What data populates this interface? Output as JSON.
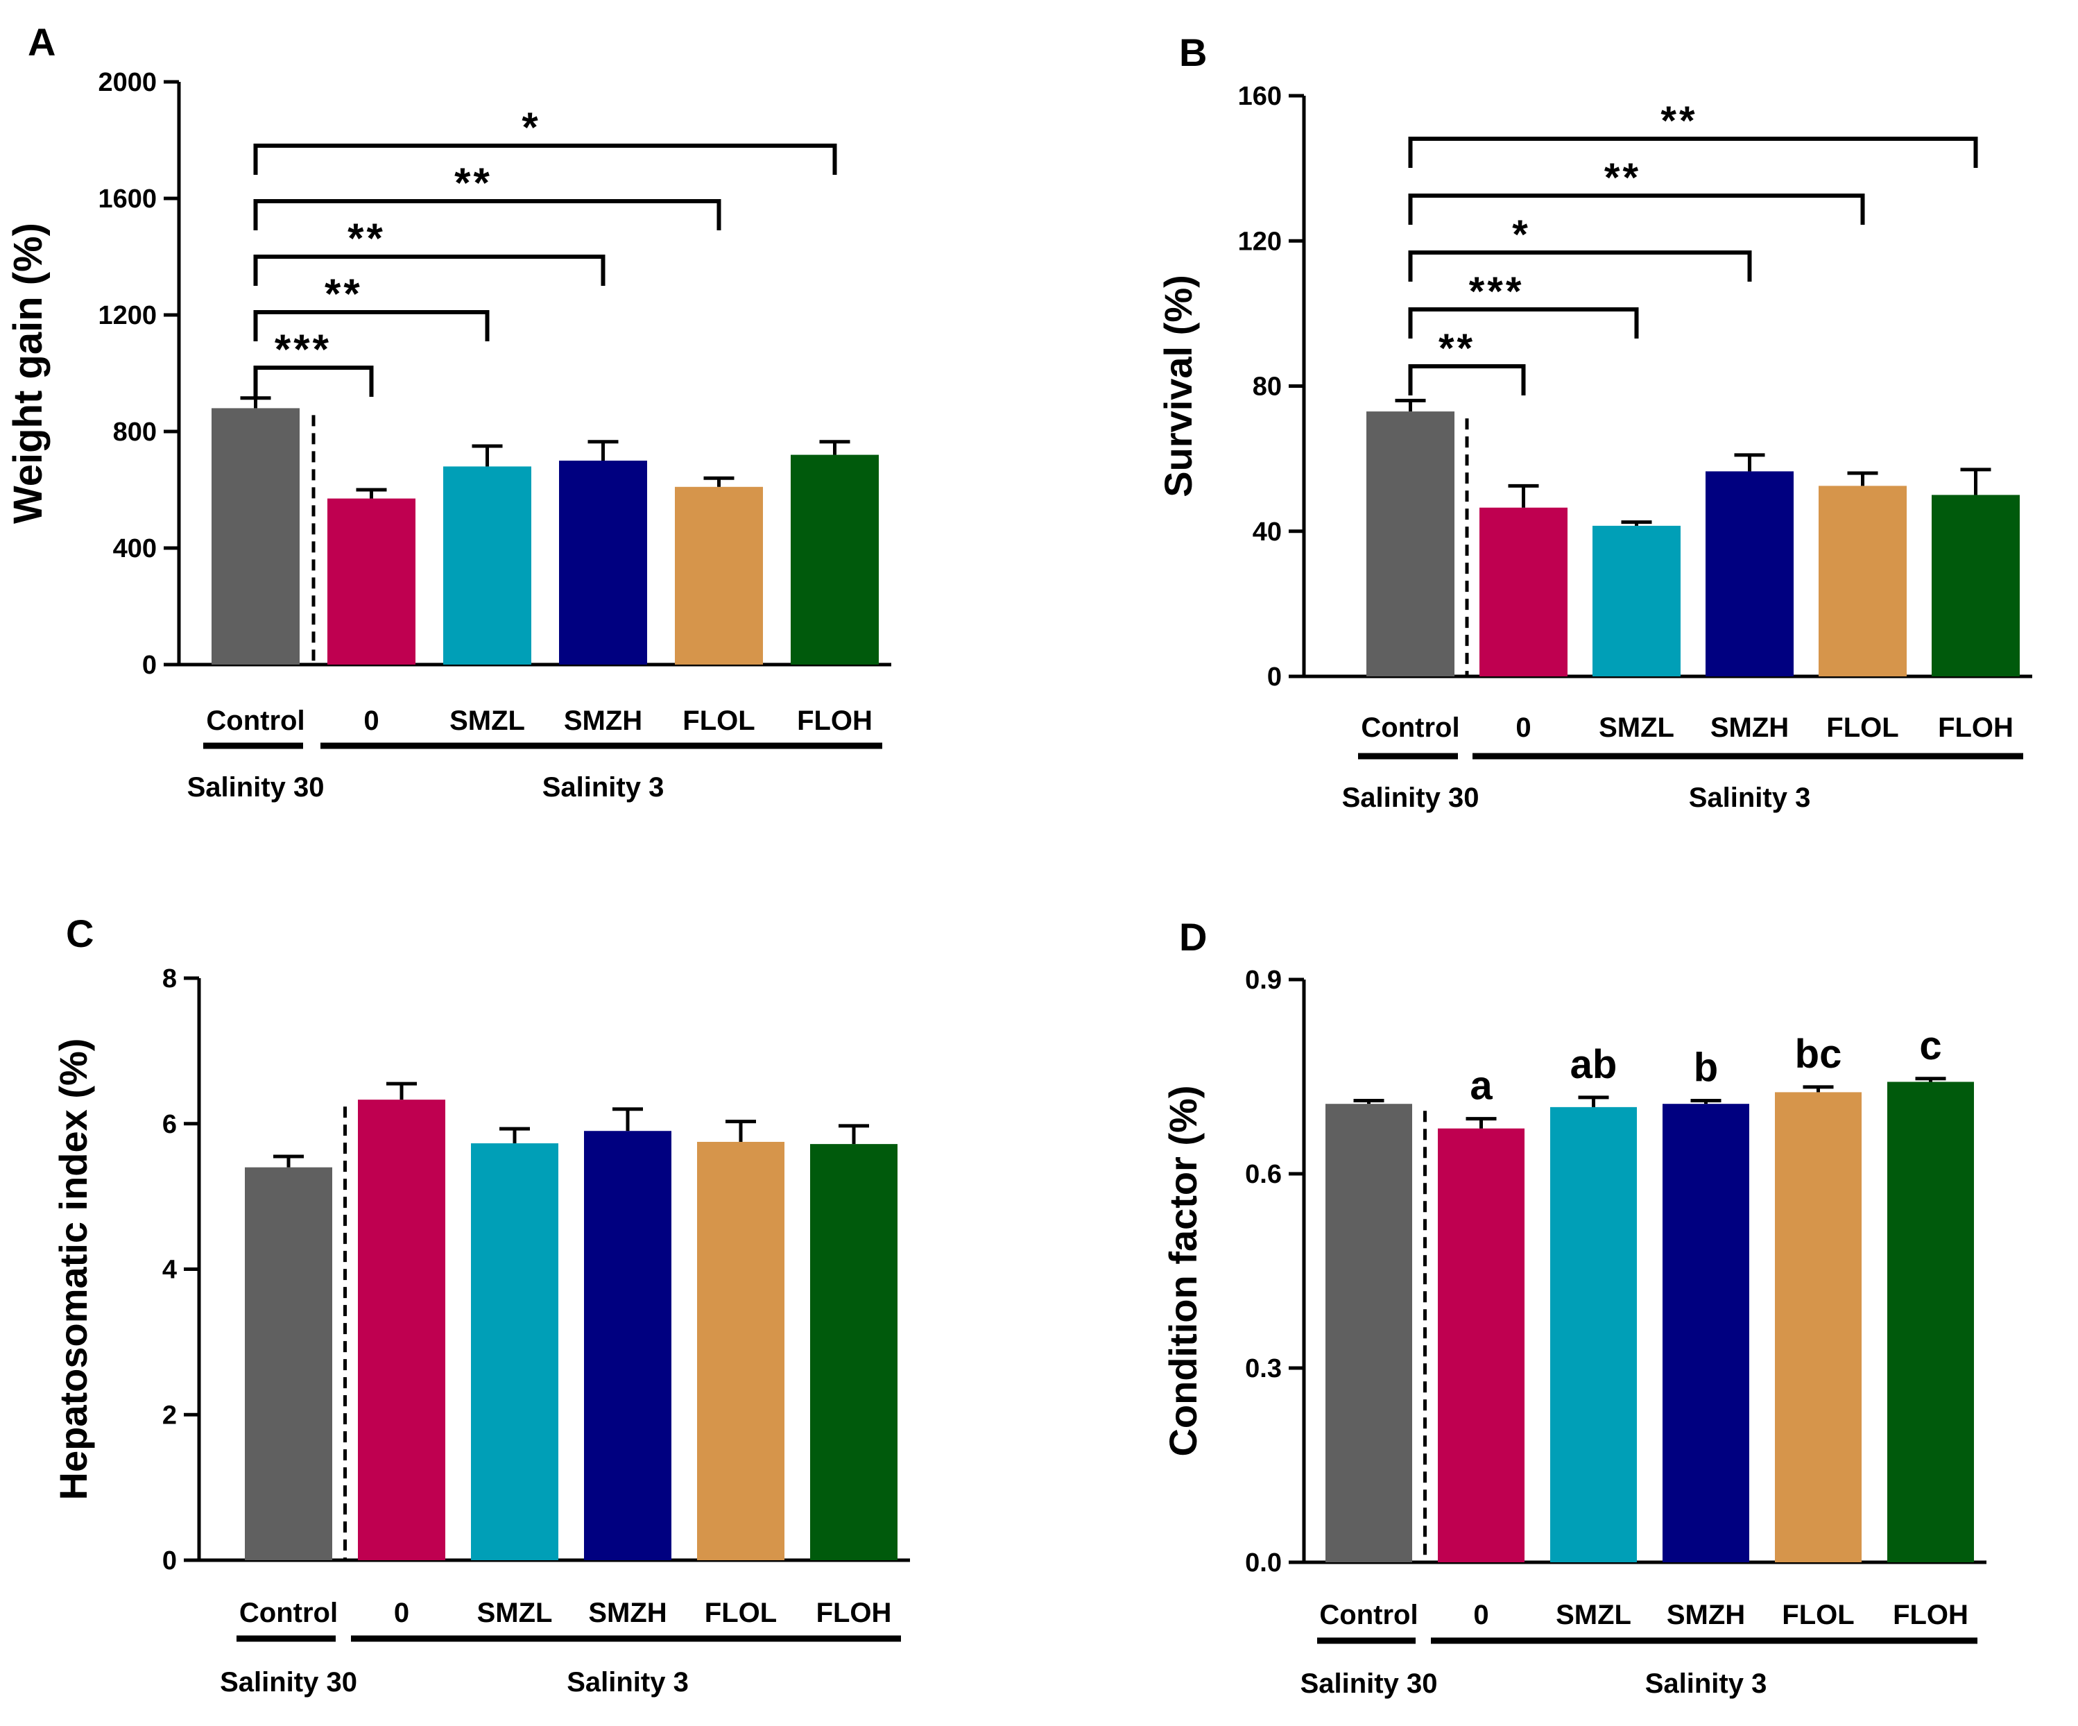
{
  "figure": {
    "colors": {
      "Control": "#606060",
      "0": "#bf0050",
      "SMZL": "#009fb7",
      "SMZH": "#000080",
      "FLOL": "#d6954b",
      "FLOH": "#005a0c"
    }
  },
  "chart_data": [
    {
      "panel": "A",
      "type": "bar",
      "ylabel": "Weight gain (%)",
      "categories": [
        "Control",
        "0",
        "SMZL",
        "SMZH",
        "FLOL",
        "FLOH"
      ],
      "values": [
        880,
        570,
        680,
        700,
        610,
        720
      ],
      "errors": [
        35,
        30,
        70,
        65,
        30,
        45
      ],
      "ylim": [
        0,
        2000
      ],
      "yticks": [
        0,
        400,
        800,
        1200,
        1600,
        2000
      ],
      "group_labels": [
        "Salinity 30",
        "Salinity 3"
      ],
      "significance": [
        {
          "from": 0,
          "to": 1,
          "label": "***"
        },
        {
          "from": 0,
          "to": 2,
          "label": "**"
        },
        {
          "from": 0,
          "to": 3,
          "label": "**"
        },
        {
          "from": 0,
          "to": 4,
          "label": "**"
        },
        {
          "from": 0,
          "to": 5,
          "label": "*"
        }
      ],
      "letters": []
    },
    {
      "panel": "B",
      "type": "bar",
      "ylabel": "Survival (%)",
      "categories": [
        "Control",
        "0",
        "SMZL",
        "SMZH",
        "FLOL",
        "FLOH"
      ],
      "values": [
        73,
        46.5,
        41.5,
        56.5,
        52.5,
        50
      ],
      "errors": [
        3,
        6,
        1,
        4.5,
        3.5,
        7
      ],
      "ylim": [
        0,
        160
      ],
      "yticks": [
        0,
        40,
        80,
        120,
        160
      ],
      "group_labels": [
        "Salinity 30",
        "Salinity 3"
      ],
      "significance": [
        {
          "from": 0,
          "to": 1,
          "label": "**"
        },
        {
          "from": 0,
          "to": 2,
          "label": "***"
        },
        {
          "from": 0,
          "to": 3,
          "label": "*"
        },
        {
          "from": 0,
          "to": 4,
          "label": "**"
        },
        {
          "from": 0,
          "to": 5,
          "label": "**"
        }
      ],
      "letters": []
    },
    {
      "panel": "C",
      "type": "bar",
      "ylabel": "Hepatosomatic index (%)",
      "categories": [
        "Control",
        "0",
        "SMZL",
        "SMZH",
        "FLOL",
        "FLOH"
      ],
      "values": [
        5.4,
        6.33,
        5.73,
        5.9,
        5.75,
        5.72
      ],
      "errors": [
        0.15,
        0.22,
        0.2,
        0.3,
        0.28,
        0.25
      ],
      "ylim": [
        0,
        8
      ],
      "yticks": [
        0,
        2,
        4,
        6,
        8
      ],
      "group_labels": [
        "Salinity 30",
        "Salinity 3"
      ],
      "significance": [],
      "letters": []
    },
    {
      "panel": "D",
      "type": "bar",
      "ylabel": "Condition factor (%)",
      "categories": [
        "Control",
        "0",
        "SMZL",
        "SMZH",
        "FLOL",
        "FLOH"
      ],
      "values": [
        0.708,
        0.67,
        0.703,
        0.708,
        0.726,
        0.742
      ],
      "errors": [
        0.005,
        0.015,
        0.015,
        0.005,
        0.008,
        0.005
      ],
      "ylim": [
        0,
        0.9
      ],
      "yticks": [
        0.0,
        0.3,
        0.6,
        0.9
      ],
      "ytick_labels": [
        "0.0",
        "0.3",
        "0.6",
        "0.9"
      ],
      "group_labels": [
        "Salinity 30",
        "Salinity 3"
      ],
      "significance": [],
      "letters": [
        "",
        "a",
        "ab",
        "b",
        "bc",
        "c"
      ]
    }
  ]
}
